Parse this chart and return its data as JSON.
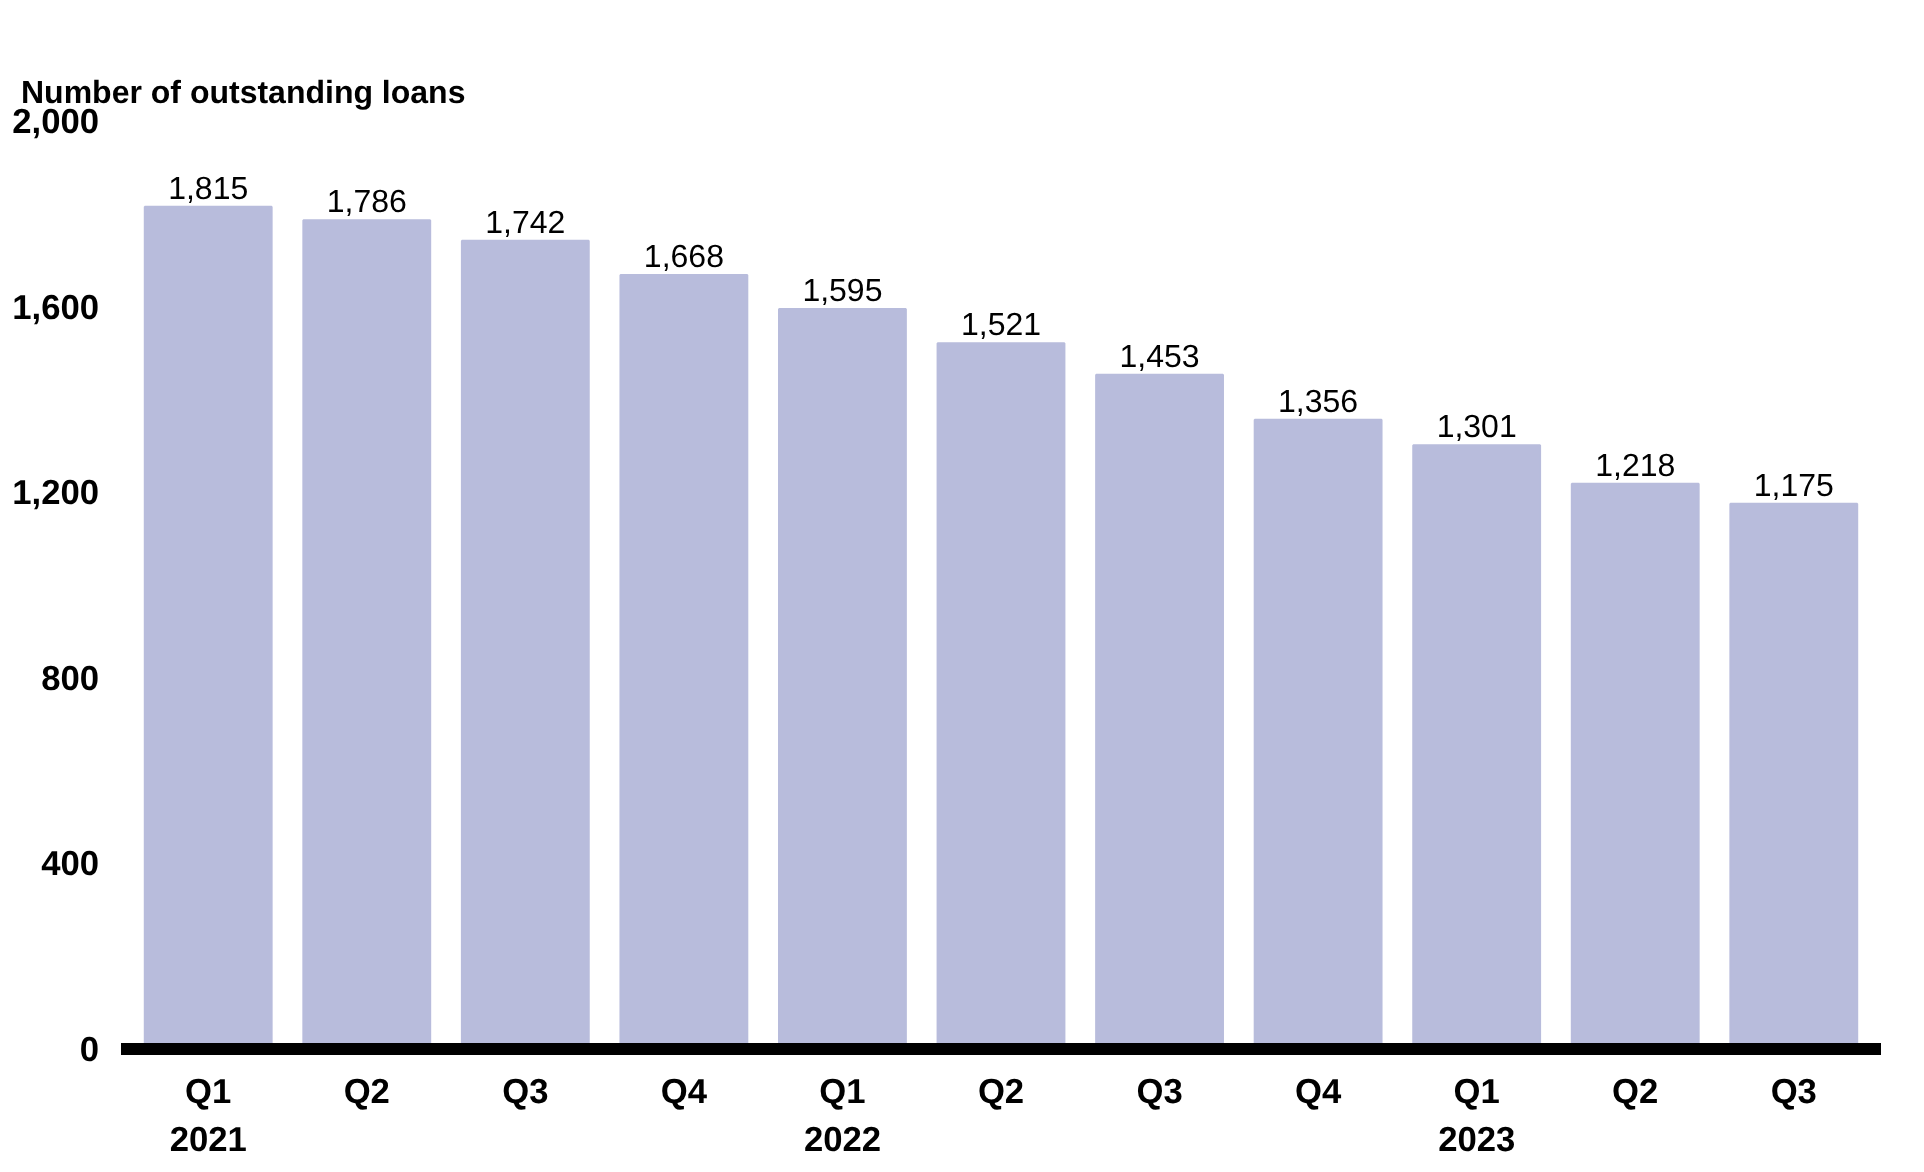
{
  "chart_data": {
    "type": "bar",
    "ylabel": "Number of outstanding loans",
    "categories": [
      "Q1\n2021",
      "Q2",
      "Q3",
      "Q4",
      "Q1\n2022",
      "Q2",
      "Q3",
      "Q4",
      "Q1\n2023",
      "Q2",
      "Q3"
    ],
    "values": [
      1815,
      1786,
      1742,
      1668,
      1595,
      1521,
      1453,
      1356,
      1301,
      1218,
      1175
    ],
    "color": "#b8bcdc",
    "ylim": [
      0,
      2000
    ],
    "yticks": [
      0,
      400,
      800,
      {
        "value": 1200,
        "label": "1,200"
      },
      {
        "value": 1600,
        "label": "1,600"
      },
      {
        "value": 2000,
        "label": "2,000"
      }
    ],
    "value_labels": [
      "1,815",
      "1,786",
      "1,742",
      "1,668",
      "1,595",
      "1,521",
      "1,453",
      "1,356",
      "1,301",
      "1,218",
      "1,175"
    ],
    "grid": false
  }
}
